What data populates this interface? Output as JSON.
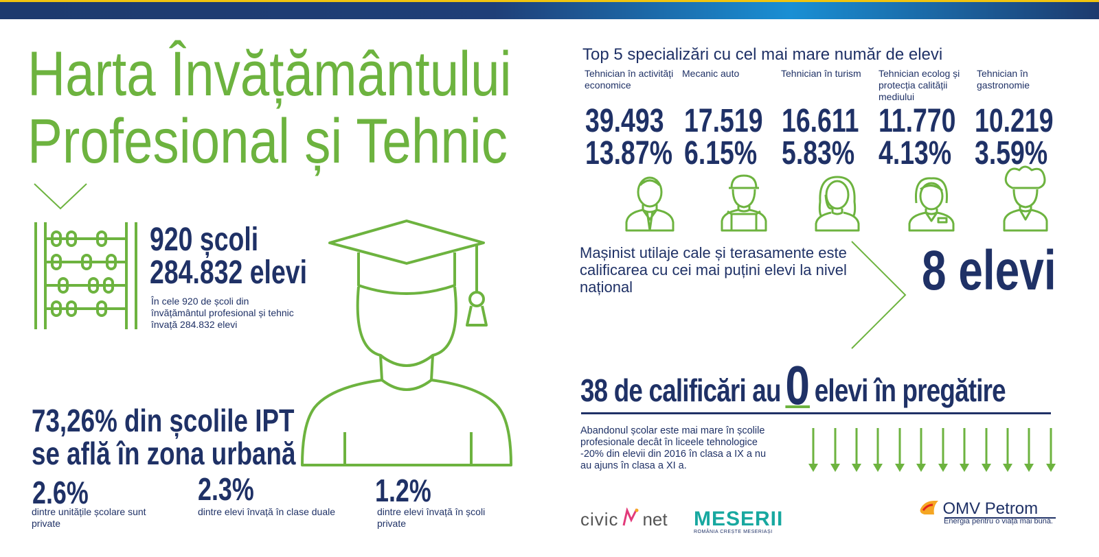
{
  "header": {
    "title_line1": "Harta Învățământului",
    "title_line2": "Profesional și Tehnic"
  },
  "schools": {
    "count": "920 școli",
    "students": "284.832 elevi",
    "description": "În cele 920 de școli din învățământul profesional și tehnic învață 284.832 elevi"
  },
  "urban": {
    "line1": "73,26% din școlile IPT",
    "line2": "se află în zona urbană"
  },
  "stats": [
    {
      "value": "2.6%",
      "label": "dintre unitățile școlare sunt private"
    },
    {
      "value": "2.3%",
      "label": "dintre elevi învață în clase duale"
    },
    {
      "value": "1.2%",
      "label": "dintre elevi învață în școli private"
    }
  ],
  "top5": {
    "heading": "Top 5 specializări cu cel mai mare număr de elevi",
    "items": [
      {
        "label": "Tehnician în activități economice",
        "count": "39.493",
        "percent": "13.87%",
        "icon": "businessman-icon"
      },
      {
        "label": "Mecanic auto",
        "count": "17.519",
        "percent": "6.15%",
        "icon": "mechanic-icon"
      },
      {
        "label": "Tehnician în turism",
        "count": "16.611",
        "percent": "5.83%",
        "icon": "headset-woman-icon"
      },
      {
        "label": "Tehnician ecolog și protecția calității mediului",
        "count": "11.770",
        "percent": "4.13%",
        "icon": "woman-badge-icon"
      },
      {
        "label": "Tehnician în gastronomie",
        "count": "10.219",
        "percent": "3.59%",
        "icon": "chef-icon"
      }
    ]
  },
  "fewest": {
    "text": "Mașinist utilaje cale și terasamente este calificarea cu cei mai puțini elevi la nivel național",
    "value": "8 elevi"
  },
  "zero": {
    "before": "38 de calificări au",
    "number": "0",
    "after": "elevi în pregătire"
  },
  "dropout": {
    "text": "Abandonul școlar este mai mare în școlile profesionale decât în liceele tehnologice -20% din elevii din 2016 în clasa a IX a nu au ajuns în clasa  a XI a."
  },
  "logos": {
    "civic": "civic",
    "net": "net",
    "meserii": "MESERII",
    "meserii_tag": "ROMÂNIA CREȘTE MESERIAȘI",
    "omv": "OMV Petrom",
    "omv_tag": "Energia pentru o viață mai bună."
  },
  "colors": {
    "green": "#6db33f",
    "navy": "#1f3166",
    "accent_yellow": "#f1c40f"
  }
}
